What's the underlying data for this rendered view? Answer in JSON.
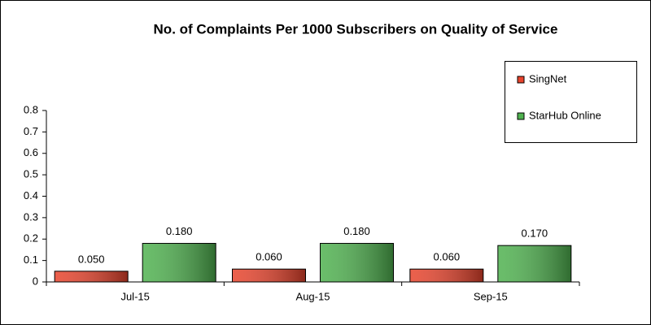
{
  "chart_data": {
    "type": "bar",
    "title": "No. of Complaints Per 1000 Subscribers on Quality of Service",
    "categories": [
      "Jul-15",
      "Aug-15",
      "Sep-15"
    ],
    "series": [
      {
        "name": "SingNet",
        "color": "#e8432c",
        "values": [
          0.05,
          0.06,
          0.06
        ],
        "value_labels": [
          "0.050",
          "0.060",
          "0.060"
        ]
      },
      {
        "name": "StarHub Online",
        "color": "#4fb24f",
        "values": [
          0.18,
          0.18,
          0.17
        ],
        "value_labels": [
          "0.180",
          "0.180",
          "0.170"
        ]
      }
    ],
    "ylim": [
      0,
      0.8
    ],
    "yticks": [
      0,
      0.1,
      0.2,
      0.3,
      0.4,
      0.5,
      0.6,
      0.7,
      0.8
    ],
    "grid": false,
    "legend": "top-right"
  }
}
